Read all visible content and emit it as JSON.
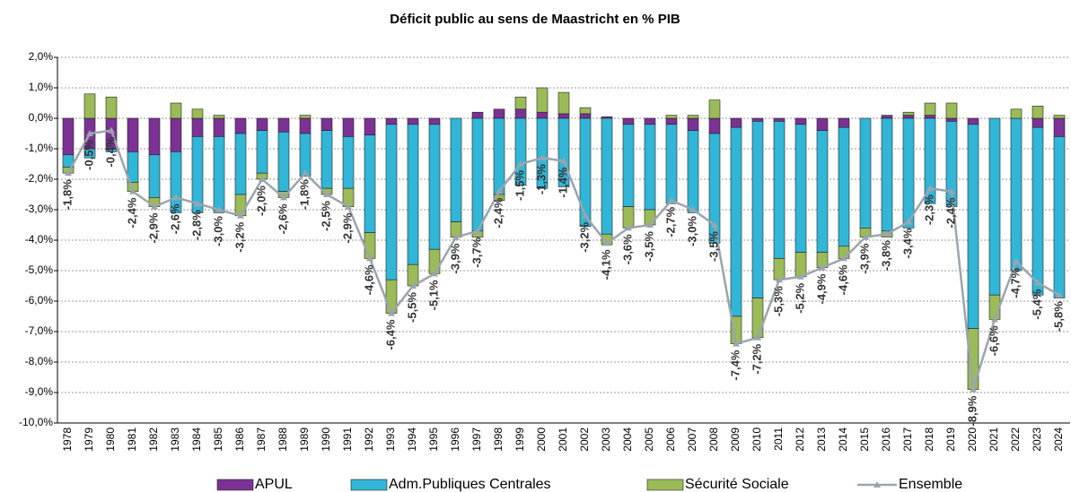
{
  "chart_data": {
    "type": "bar",
    "title": "Déficit public au sens de Maastricht en % PIB",
    "categories": [
      "1978",
      "1979",
      "1980",
      "1981",
      "1982",
      "1983",
      "1984",
      "1985",
      "1986",
      "1987",
      "1988",
      "1989",
      "1990",
      "1991",
      "1992",
      "1993",
      "1994",
      "1995",
      "1996",
      "1997",
      "1998",
      "1999",
      "2000",
      "2001",
      "2002",
      "2003",
      "2004",
      "2005",
      "2006",
      "2007",
      "2008",
      "2009",
      "2010",
      "2011",
      "2012",
      "2013",
      "2014",
      "2015",
      "2016",
      "2017",
      "2018",
      "2019",
      "2020",
      "2021",
      "2022",
      "2023",
      "2024"
    ],
    "series": [
      {
        "name": "APUL",
        "color": "#7b3294",
        "values": [
          -1.2,
          -1.0,
          -1.0,
          -1.1,
          -1.2,
          -1.1,
          -0.6,
          -0.6,
          -0.5,
          -0.4,
          -0.45,
          -0.5,
          -0.4,
          -0.6,
          -0.55,
          -0.2,
          -0.2,
          -0.2,
          0,
          0.2,
          0.3,
          0.3,
          0.2,
          0.15,
          0.15,
          0.05,
          -0.2,
          -0.2,
          -0.2,
          -0.4,
          -0.5,
          -0.3,
          -0.1,
          -0.1,
          -0.2,
          -0.4,
          -0.3,
          0,
          0.1,
          0.1,
          0.1,
          -0.1,
          -0.2,
          0,
          0,
          -0.3,
          -0.6
        ]
      },
      {
        "name": "Adm.Publiques Centrales",
        "color": "#31b6d7",
        "values": [
          -0.4,
          -0.3,
          -0.1,
          -1.0,
          -1.4,
          -2.0,
          -2.5,
          -2.5,
          -2.0,
          -1.4,
          -1.95,
          -1.4,
          -1.9,
          -1.7,
          -3.2,
          -5.1,
          -4.6,
          -4.1,
          -3.4,
          -3.7,
          -2.5,
          -2.2,
          -2.3,
          -2.25,
          -3.55,
          -3.8,
          -2.7,
          -2.8,
          -2.6,
          -2.7,
          -3.6,
          -6.2,
          -5.8,
          -4.5,
          -4.2,
          -4.0,
          -3.9,
          -3.6,
          -3.7,
          -3.6,
          -2.8,
          -2.8,
          -6.7,
          -5.8,
          -5.0,
          -5.5,
          -5.3
        ]
      },
      {
        "name": "Sécurité Sociale",
        "color": "#9bbb59",
        "values": [
          -0.2,
          0.8,
          0.7,
          -0.3,
          -0.3,
          0.5,
          0.3,
          0.1,
          -0.7,
          -0.2,
          -0.2,
          0.1,
          -0.2,
          -0.6,
          -0.85,
          -1.1,
          -0.7,
          -0.8,
          -0.5,
          -0.2,
          -0.2,
          0.4,
          0.8,
          0.7,
          0.2,
          -0.35,
          -0.7,
          -0.5,
          0.1,
          0.1,
          0.6,
          -0.9,
          -1.3,
          -0.7,
          -0.8,
          -0.5,
          -0.4,
          -0.3,
          -0.2,
          0.1,
          0.4,
          0.5,
          -2.0,
          -0.8,
          0.3,
          0.4,
          0.1
        ]
      },
      {
        "name": "Ensemble",
        "type": "line",
        "color": "#9aa5ae",
        "values": [
          -1.8,
          -0.5,
          -0.4,
          -2.4,
          -2.9,
          -2.6,
          -2.8,
          -3.0,
          -3.2,
          -2.0,
          -2.6,
          -1.8,
          -2.5,
          -2.9,
          -4.6,
          -6.4,
          -5.5,
          -5.1,
          -3.9,
          -3.7,
          -2.4,
          -1.5,
          -1.3,
          -1.4,
          -3.2,
          -4.1,
          -3.6,
          -3.5,
          -2.7,
          -3.0,
          -3.5,
          -7.4,
          -7.2,
          -5.3,
          -5.2,
          -4.9,
          -4.6,
          -3.9,
          -3.8,
          -3.4,
          -2.3,
          -2.4,
          -8.9,
          -6.6,
          -4.7,
          -5.4,
          -5.8
        ],
        "value_labels": [
          "-1,8%",
          "-0,5%",
          "-0,4%",
          "-2,4%",
          "-2,9%",
          "-2,6%",
          "-2,8%",
          "-3,0%",
          "-3,2%",
          "-2,0%",
          "-2,6%",
          "-1,8%",
          "-2,5%",
          "-2,9%",
          "-4,6%",
          "-6,4%",
          "-5,5%",
          "-5,1%",
          "-3,9%",
          "-3,7%",
          "-2,4%",
          "-1,5%",
          "-1,3%",
          "-1,4%",
          "-3,2%",
          "-4,1%",
          "-3,6%",
          "-3,5%",
          "-2,7%",
          "-3,0%",
          "-3,5%",
          "-7,4%",
          "-7,2%",
          "-5,3%",
          "-5,2%",
          "-4,9%",
          "-4,6%",
          "-3,9%",
          "-3,8%",
          "-3,4%",
          "-2,3%",
          "-2,4%",
          "-8,9%",
          "-6,6%",
          "-4,7%",
          "-5,4%",
          "-5,8%"
        ]
      }
    ],
    "ylim": [
      -10,
      2
    ],
    "yticks": [
      {
        "value": -10,
        "label": "-10,0%"
      },
      {
        "value": -9,
        "label": "-9,0%"
      },
      {
        "value": -8,
        "label": "-8,0%"
      },
      {
        "value": -7,
        "label": "-7,0%"
      },
      {
        "value": -6,
        "label": "-6,0%"
      },
      {
        "value": -5,
        "label": "-5,0%"
      },
      {
        "value": -4,
        "label": "-4,0%"
      },
      {
        "value": -3,
        "label": "-3,0%"
      },
      {
        "value": -2,
        "label": "-2,0%"
      },
      {
        "value": -1,
        "label": "-1,0%"
      },
      {
        "value": 0,
        "label": "0,0%"
      },
      {
        "value": 1,
        "label": "1,0%"
      },
      {
        "value": 2,
        "label": "2,0%"
      }
    ],
    "grid": true,
    "legend": "bottom"
  }
}
